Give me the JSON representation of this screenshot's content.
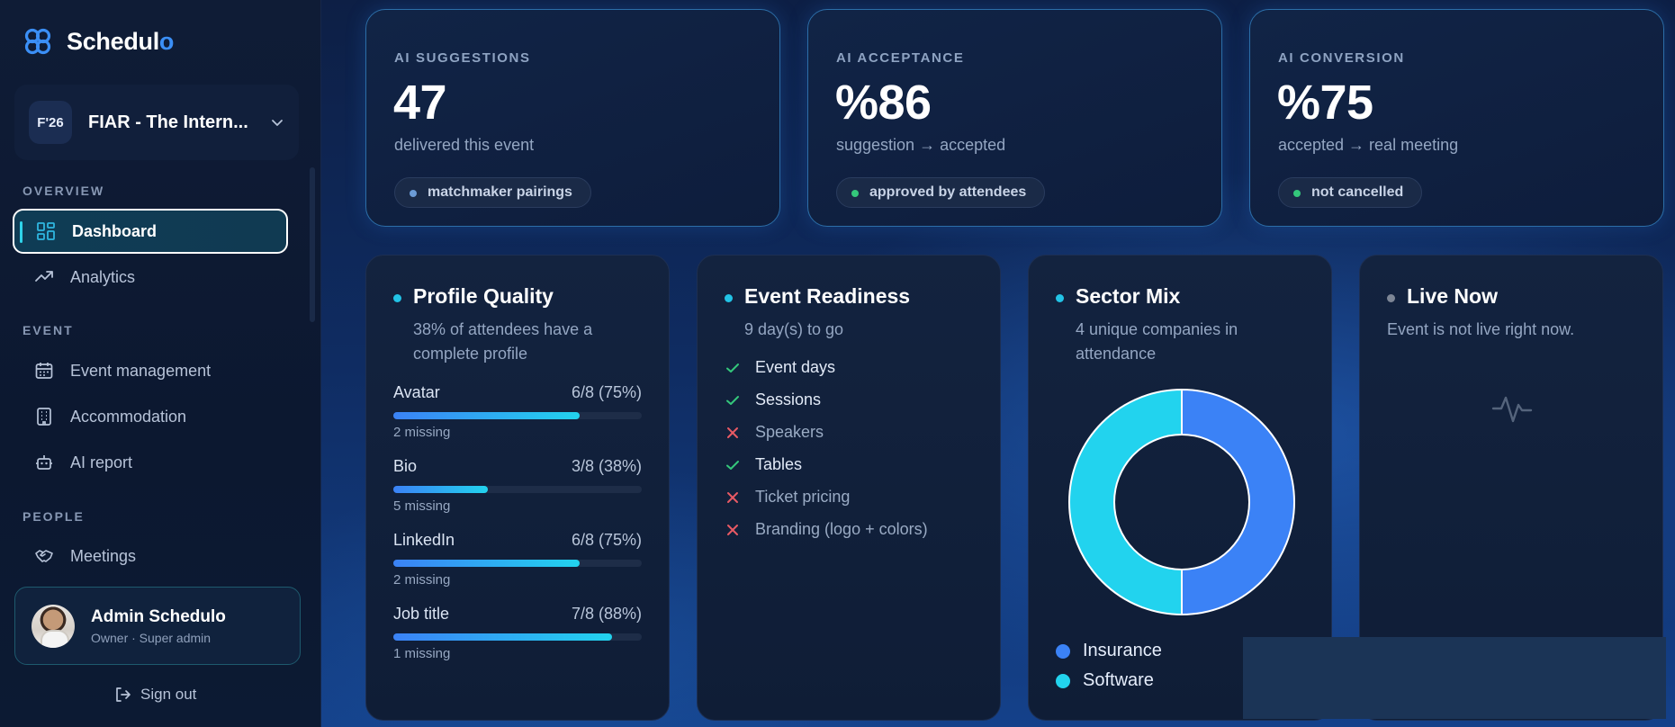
{
  "brand": {
    "name_main": "Schedul",
    "name_accent": "o"
  },
  "event": {
    "badge": "F'26",
    "name": "FIAR - The Intern..."
  },
  "nav": {
    "overview_label": "OVERVIEW",
    "dashboard": "Dashboard",
    "analytics": "Analytics",
    "event_label": "EVENT",
    "event_management": "Event management",
    "accommodation": "Accommodation",
    "ai_report": "AI report",
    "people_label": "PEOPLE",
    "meetings": "Meetings"
  },
  "user": {
    "name": "Admin Schedulo",
    "role": "Owner · Super admin"
  },
  "signout": "Sign out",
  "kpis": [
    {
      "label": "AI SUGGESTIONS",
      "value": "47",
      "sub": "delivered this event",
      "pill": "matchmaker pairings",
      "dot_color": "#6b9bd6"
    },
    {
      "label": "AI ACCEPTANCE",
      "value": "%86",
      "sub": "suggestion → accepted",
      "pill": "approved by attendees",
      "dot_color": "#34c77b"
    },
    {
      "label": "AI CONVERSION",
      "value": "%75",
      "sub": "accepted → real meeting",
      "pill": "not cancelled",
      "dot_color": "#34c77b"
    }
  ],
  "profile_quality": {
    "title": "Profile Quality",
    "subtitle": "38% of attendees have a complete profile",
    "metrics": [
      {
        "label": "Avatar",
        "value": "6/8 (75%)",
        "fraction": 0.75,
        "missing": "2 missing"
      },
      {
        "label": "Bio",
        "value": "3/8 (38%)",
        "fraction": 0.38,
        "missing": "5 missing"
      },
      {
        "label": "LinkedIn",
        "value": "6/8 (75%)",
        "fraction": 0.75,
        "missing": "2 missing"
      },
      {
        "label": "Job title",
        "value": "7/8 (88%)",
        "fraction": 0.88,
        "missing": "1 missing"
      }
    ]
  },
  "event_readiness": {
    "title": "Event Readiness",
    "subtitle": "9 day(s) to go",
    "items": [
      {
        "label": "Event days",
        "done": true
      },
      {
        "label": "Sessions",
        "done": true
      },
      {
        "label": "Speakers",
        "done": false
      },
      {
        "label": "Tables",
        "done": true
      },
      {
        "label": "Ticket pricing",
        "done": false
      },
      {
        "label": "Branding (logo + colors)",
        "done": false
      }
    ]
  },
  "sector_mix": {
    "title": "Sector Mix",
    "subtitle": "4 unique companies in attendance",
    "colors": {
      "insurance": "#3b82f6",
      "software": "#22d3ee"
    }
  },
  "chart_data": {
    "type": "pie",
    "categories": [
      "Insurance",
      "Software"
    ],
    "values": [
      50,
      50
    ],
    "title": "Sector Mix",
    "legend": "bottom-left"
  },
  "live_now": {
    "title": "Live Now",
    "subtitle": "Event is not live right now."
  }
}
